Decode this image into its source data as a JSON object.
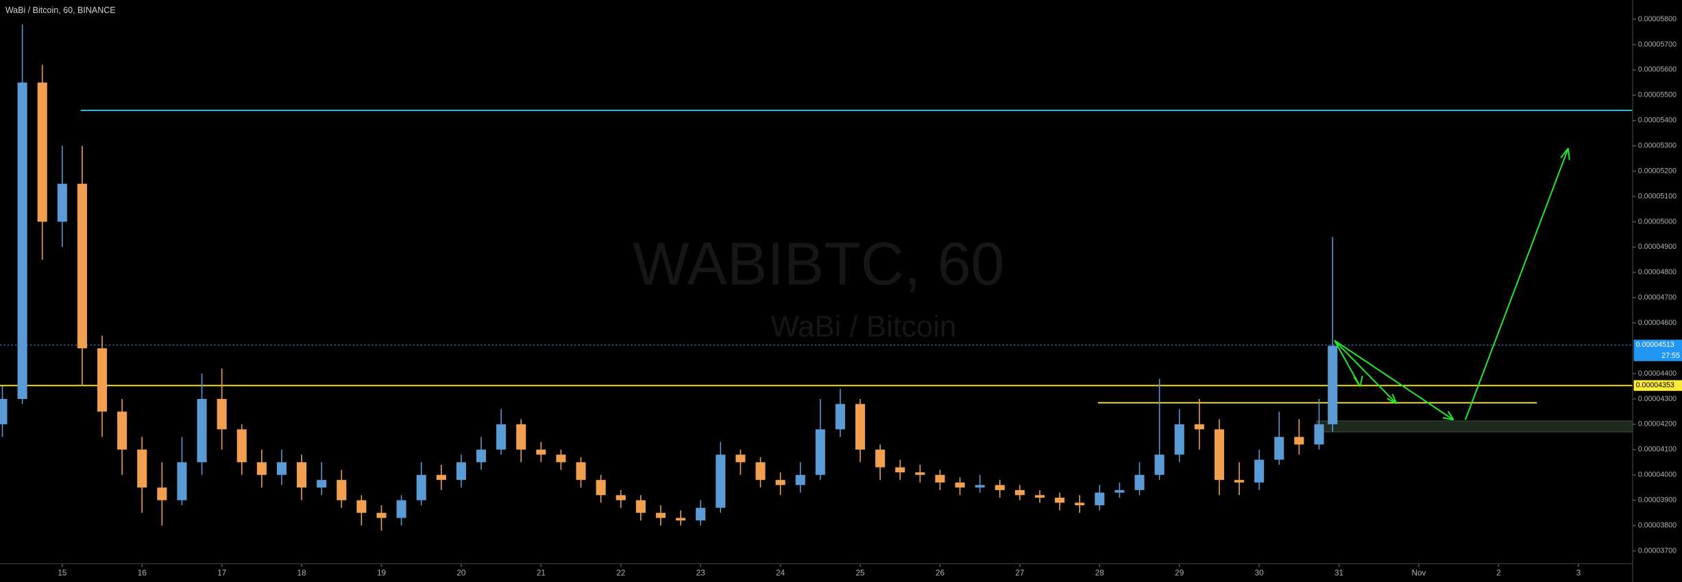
{
  "chart_data": {
    "type": "candlestick",
    "title": "WaBi / Bitcoin, 60, BINANCE",
    "watermark": "WABIBTC, 60",
    "watermark_subtitle": "WaBi / Bitcoin",
    "up_color": "#5b9bd5",
    "down_color": "#f0a050",
    "grid": false,
    "xlim": [
      14.22,
      34.68
    ],
    "xticks": [
      15,
      16,
      17,
      18,
      19,
      20,
      21,
      22,
      23,
      24,
      25,
      26,
      27,
      28,
      29,
      30,
      31,
      {
        "value": 32,
        "label": "Nov"
      },
      {
        "value": 33,
        "label": "2"
      },
      {
        "value": 34,
        "label": "3"
      }
    ],
    "ylim": [
      3.649e-05,
      5.876e-05
    ],
    "yticks": [
      {
        "value": 5.8e-05,
        "label": "0.00005800"
      },
      {
        "value": 5.7e-05,
        "label": "0.00005700"
      },
      {
        "value": 5.6e-05,
        "label": "0.00005600"
      },
      {
        "value": 5.5e-05,
        "label": "0.00005500"
      },
      {
        "value": 5.4e-05,
        "label": "0.00005400"
      },
      {
        "value": 5.3e-05,
        "label": "0.00005300"
      },
      {
        "value": 5.2e-05,
        "label": "0.00005200"
      },
      {
        "value": 5.1e-05,
        "label": "0.00005100"
      },
      {
        "value": 5e-05,
        "label": "0.00005000"
      },
      {
        "value": 4.9e-05,
        "label": "0.00004900"
      },
      {
        "value": 4.8e-05,
        "label": "0.00004800"
      },
      {
        "value": 4.7e-05,
        "label": "0.00004700"
      },
      {
        "value": 4.6e-05,
        "label": "0.00004600"
      },
      {
        "value": 4.4e-05,
        "label": "0.00004400"
      },
      {
        "value": 4.3e-05,
        "label": "0.00004300"
      },
      {
        "value": 4.2e-05,
        "label": "0.00004200"
      },
      {
        "value": 4.1e-05,
        "label": "0.00004100"
      },
      {
        "value": 4e-05,
        "label": "0.00004000"
      },
      {
        "value": 3.9e-05,
        "label": "0.00003900"
      },
      {
        "value": 3.8e-05,
        "label": "0.00003800"
      },
      {
        "value": 3.7e-05,
        "label": "0.00003700"
      }
    ],
    "x": [
      14.25,
      14.5,
      14.75,
      15,
      15.25,
      15.5,
      15.75,
      16,
      16.25,
      16.5,
      16.75,
      17,
      17.25,
      17.5,
      17.75,
      18,
      18.25,
      18.5,
      18.75,
      19,
      19.25,
      19.5,
      19.75,
      20,
      20.25,
      20.5,
      20.75,
      21,
      21.25,
      21.5,
      21.75,
      22,
      22.25,
      22.5,
      22.75,
      23,
      23.25,
      23.5,
      23.75,
      24,
      24.25,
      24.5,
      24.75,
      25,
      25.25,
      25.5,
      25.75,
      26,
      26.25,
      26.5,
      26.75,
      27,
      27.25,
      27.5,
      27.75,
      28,
      28.25,
      28.5,
      28.75,
      29,
      29.25,
      29.5,
      29.75,
      30,
      30.25,
      30.5,
      30.75,
      30.92
    ],
    "ohlc": [
      [
        4.2e-05,
        4.35e-05,
        4.15e-05,
        4.3e-05
      ],
      [
        4.3e-05,
        5.78e-05,
        4.28e-05,
        5.55e-05
      ],
      [
        5.55e-05,
        5.62e-05,
        4.85e-05,
        5e-05
      ],
      [
        5e-05,
        5.3e-05,
        4.9e-05,
        5.15e-05
      ],
      [
        5.15e-05,
        5.3e-05,
        4.35e-05,
        4.5e-05
      ],
      [
        4.5e-05,
        4.55e-05,
        4.15e-05,
        4.25e-05
      ],
      [
        4.25e-05,
        4.3e-05,
        4e-05,
        4.1e-05
      ],
      [
        4.1e-05,
        4.15e-05,
        3.85e-05,
        3.95e-05
      ],
      [
        3.95e-05,
        4.05e-05,
        3.8e-05,
        3.9e-05
      ],
      [
        3.9e-05,
        4.15e-05,
        3.88e-05,
        4.05e-05
      ],
      [
        4.05e-05,
        4.4e-05,
        4e-05,
        4.3e-05
      ],
      [
        4.3e-05,
        4.42e-05,
        4.1e-05,
        4.18e-05
      ],
      [
        4.18e-05,
        4.2e-05,
        4e-05,
        4.05e-05
      ],
      [
        4.05e-05,
        4.1e-05,
        3.95e-05,
        4e-05
      ],
      [
        4e-05,
        4.1e-05,
        3.96e-05,
        4.05e-05
      ],
      [
        4.05e-05,
        4.08e-05,
        3.9e-05,
        3.95e-05
      ],
      [
        3.95e-05,
        4.05e-05,
        3.92e-05,
        3.98e-05
      ],
      [
        3.98e-05,
        4.02e-05,
        3.87e-05,
        3.9e-05
      ],
      [
        3.9e-05,
        3.92e-05,
        3.8e-05,
        3.85e-05
      ],
      [
        3.85e-05,
        3.88e-05,
        3.78e-05,
        3.83e-05
      ],
      [
        3.83e-05,
        3.92e-05,
        3.8e-05,
        3.9e-05
      ],
      [
        3.9e-05,
        4.05e-05,
        3.88e-05,
        4e-05
      ],
      [
        4e-05,
        4.04e-05,
        3.94e-05,
        3.98e-05
      ],
      [
        3.98e-05,
        4.08e-05,
        3.95e-05,
        4.05e-05
      ],
      [
        4.05e-05,
        4.15e-05,
        4.02e-05,
        4.1e-05
      ],
      [
        4.1e-05,
        4.26e-05,
        4.08e-05,
        4.2e-05
      ],
      [
        4.2e-05,
        4.22e-05,
        4.05e-05,
        4.1e-05
      ],
      [
        4.1e-05,
        4.13e-05,
        4.05e-05,
        4.08e-05
      ],
      [
        4.08e-05,
        4.1e-05,
        4.02e-05,
        4.05e-05
      ],
      [
        4.05e-05,
        4.07e-05,
        3.95e-05,
        3.98e-05
      ],
      [
        3.98e-05,
        4e-05,
        3.89e-05,
        3.92e-05
      ],
      [
        3.92e-05,
        3.94e-05,
        3.87e-05,
        3.9e-05
      ],
      [
        3.9e-05,
        3.92e-05,
        3.82e-05,
        3.85e-05
      ],
      [
        3.85e-05,
        3.88e-05,
        3.8e-05,
        3.83e-05
      ],
      [
        3.83e-05,
        3.86e-05,
        3.8e-05,
        3.82e-05
      ],
      [
        3.82e-05,
        3.9e-05,
        3.8e-05,
        3.87e-05
      ],
      [
        3.87e-05,
        4.13e-05,
        3.85e-05,
        4.08e-05
      ],
      [
        4.08e-05,
        4.1e-05,
        4e-05,
        4.05e-05
      ],
      [
        4.05e-05,
        4.07e-05,
        3.95e-05,
        3.98e-05
      ],
      [
        3.98e-05,
        4.01e-05,
        3.92e-05,
        3.96e-05
      ],
      [
        3.96e-05,
        4.05e-05,
        3.93e-05,
        4e-05
      ],
      [
        4e-05,
        4.3e-05,
        3.98e-05,
        4.18e-05
      ],
      [
        4.18e-05,
        4.34e-05,
        4.15e-05,
        4.28e-05
      ],
      [
        4.28e-05,
        4.3e-05,
        4.05e-05,
        4.1e-05
      ],
      [
        4.1e-05,
        4.12e-05,
        3.98e-05,
        4.03e-05
      ],
      [
        4.03e-05,
        4.06e-05,
        3.98e-05,
        4.01e-05
      ],
      [
        4.01e-05,
        4.04e-05,
        3.97e-05,
        4e-05
      ],
      [
        4e-05,
        4.02e-05,
        3.94e-05,
        3.97e-05
      ],
      [
        3.97e-05,
        3.99e-05,
        3.92e-05,
        3.95e-05
      ],
      [
        3.95e-05,
        4e-05,
        3.93e-05,
        3.96e-05
      ],
      [
        3.96e-05,
        3.98e-05,
        3.91e-05,
        3.94e-05
      ],
      [
        3.94e-05,
        3.96e-05,
        3.9e-05,
        3.92e-05
      ],
      [
        3.92e-05,
        3.94e-05,
        3.89e-05,
        3.91e-05
      ],
      [
        3.91e-05,
        3.93e-05,
        3.86e-05,
        3.89e-05
      ],
      [
        3.89e-05,
        3.92e-05,
        3.85e-05,
        3.88e-05
      ],
      [
        3.88e-05,
        3.96e-05,
        3.86e-05,
        3.93e-05
      ],
      [
        3.93e-05,
        3.97e-05,
        3.91e-05,
        3.94e-05
      ],
      [
        3.94e-05,
        4.05e-05,
        3.92e-05,
        4e-05
      ],
      [
        4e-05,
        4.38e-05,
        3.98e-05,
        4.08e-05
      ],
      [
        4.08e-05,
        4.26e-05,
        4.05e-05,
        4.2e-05
      ],
      [
        4.2e-05,
        4.3e-05,
        4.1e-05,
        4.18e-05
      ],
      [
        4.18e-05,
        4.22e-05,
        3.92e-05,
        3.98e-05
      ],
      [
        3.98e-05,
        4.05e-05,
        3.92e-05,
        3.97e-05
      ],
      [
        3.97e-05,
        4.1e-05,
        3.94e-05,
        4.06e-05
      ],
      [
        4.06e-05,
        4.25e-05,
        4.04e-05,
        4.15e-05
      ],
      [
        4.15e-05,
        4.22e-05,
        4.08e-05,
        4.12e-05
      ],
      [
        4.12e-05,
        4.3e-05,
        4.1e-05,
        4.2e-05
      ],
      [
        4.2e-05,
        4.94e-05,
        4.17e-05,
        4.51e-05
      ]
    ],
    "hlines": [
      {
        "value": 5.44e-05,
        "x": [
          15.23,
          34.68
        ],
        "color": "#3fc4e6"
      },
      {
        "value": 4.353e-05,
        "x": [
          14.22,
          34.68
        ],
        "color": "#ffeb3b"
      },
      {
        "value": 4.285e-05,
        "x": [
          27.98,
          33.48
        ],
        "color": "#ffeb3b"
      }
    ],
    "zone": {
      "range": [
        4.17e-05,
        4.213e-05
      ],
      "x": [
        30.72,
        34.68
      ],
      "color": "#1f2a1f"
    },
    "last_price": {
      "value": 4.513e-05,
      "label": "0.00004513",
      "countdown": "27:55",
      "color": "#2196f3"
    },
    "line_price": {
      "value": 4.353e-05,
      "label": "0.00004353",
      "color": "#ffeb3b"
    }
  }
}
